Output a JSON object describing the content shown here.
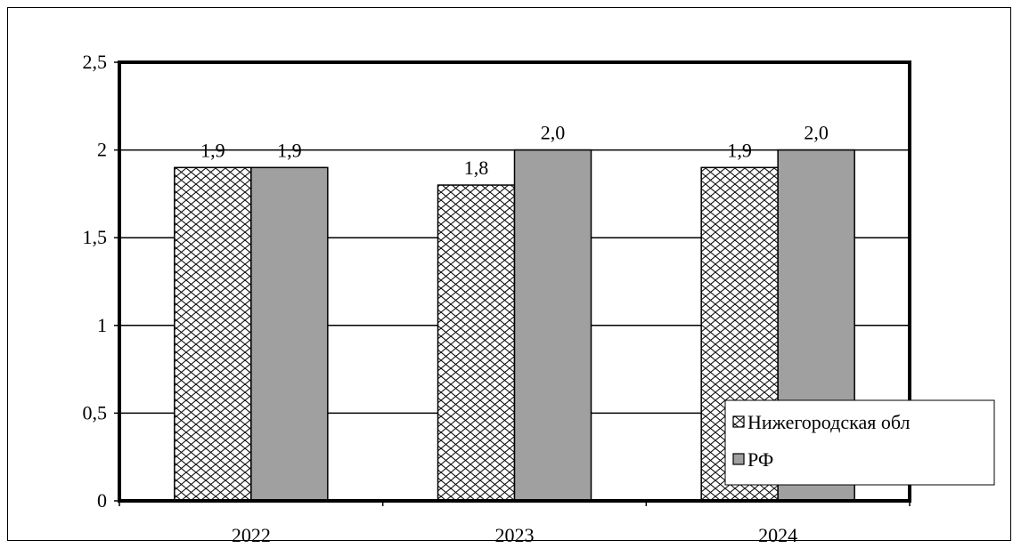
{
  "chart_data": {
    "type": "bar",
    "categories": [
      "2022",
      "2023",
      "2024"
    ],
    "series": [
      {
        "name": "Нижегородская обл",
        "values": [
          1.9,
          1.8,
          1.9
        ],
        "labels": [
          "1,9",
          "1,8",
          "1,9"
        ],
        "fill": "hatch"
      },
      {
        "name": "РФ",
        "values": [
          1.9,
          2.0,
          2.0
        ],
        "labels": [
          "1,9",
          "2,0",
          "2,0"
        ],
        "fill": "#a0a0a0"
      }
    ],
    "ylim": [
      0,
      2.5
    ],
    "yticks": [
      0,
      0.5,
      1,
      1.5,
      2,
      2.5
    ],
    "ytick_labels": [
      "0",
      "0,5",
      "1",
      "1,5",
      "2",
      "2,5"
    ],
    "grid": true,
    "legend_position": "bottom-right",
    "title": "",
    "xlabel": "",
    "ylabel": ""
  }
}
